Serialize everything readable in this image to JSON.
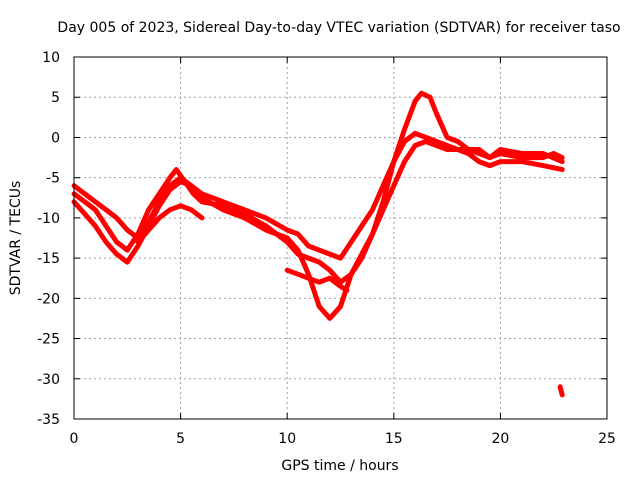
{
  "chart_data": {
    "type": "line",
    "title": "Day 005 of 2023, Sidereal Day-to-day VTEC variation (SDTVAR) for receiver taso",
    "xlabel": "GPS time / hours",
    "ylabel": "SDTVAR / TECUs",
    "xlim": [
      0,
      25
    ],
    "ylim": [
      -35,
      10
    ],
    "xticks": [
      0,
      5,
      10,
      15,
      20,
      25
    ],
    "yticks": [
      10,
      5,
      0,
      -5,
      -10,
      -15,
      -20,
      -25,
      -30,
      -35
    ],
    "x_tick_labels": [
      "0",
      "5",
      "10",
      "15",
      "20",
      "25"
    ],
    "y_tick_labels": [
      "10",
      "5",
      "0",
      "-5",
      "-10",
      "-15",
      "-20",
      "-25",
      "-30",
      "-35"
    ],
    "grid": true,
    "legend": "none",
    "color": "#ff0000",
    "series": [
      {
        "name": "track-1",
        "x": [
          0.0,
          0.5,
          1.0,
          1.5,
          2.0,
          2.5,
          3.0,
          3.5,
          4.0,
          4.5,
          4.8,
          5.2,
          5.6,
          6.0,
          7.0,
          8.0,
          9.0,
          9.5,
          10.0,
          10.5,
          11.0,
          11.5,
          12.0,
          12.5,
          13.0,
          13.5,
          14.0,
          14.5,
          15.0,
          15.5,
          16.0,
          16.3,
          16.7,
          17.0,
          17.5,
          18.0,
          18.5,
          19.0,
          19.5,
          20.0,
          21.0,
          22.0,
          22.5,
          22.9
        ],
        "y": [
          -7,
          -8,
          -9,
          -11,
          -13,
          -14,
          -12,
          -9,
          -7,
          -5,
          -4,
          -5.5,
          -7,
          -8,
          -8.5,
          -9.5,
          -11,
          -12,
          -13,
          -14.5,
          -15,
          -15.5,
          -16.5,
          -18,
          -17,
          -15,
          -12,
          -8,
          -3,
          1,
          4.5,
          5.5,
          5,
          3,
          0,
          -0.5,
          -1.5,
          -2,
          -2.5,
          -2,
          -2.5,
          -2.5,
          -2,
          -2.5
        ]
      },
      {
        "name": "track-2",
        "x": [
          0.0,
          0.5,
          1.0,
          1.5,
          2.0,
          2.5,
          3.0,
          3.5,
          4.0,
          4.5,
          5.0,
          5.5,
          6.0,
          7.0,
          8.0,
          9.0,
          10.0,
          10.5,
          11.0,
          11.5,
          12.0,
          12.5,
          13.0,
          13.5,
          14.0,
          14.5,
          15.0,
          15.5,
          16.0,
          16.5,
          17.0,
          17.5,
          18.0,
          18.5,
          19.0,
          19.5,
          20.0,
          21.0,
          22.0,
          22.9
        ],
        "y": [
          -8,
          -9.5,
          -11,
          -13,
          -14.5,
          -15.5,
          -13.5,
          -11,
          -8.5,
          -6.5,
          -5.5,
          -6,
          -7.5,
          -9,
          -10,
          -11.5,
          -12.5,
          -14,
          -17,
          -21,
          -22.5,
          -21,
          -17,
          -14.5,
          -12,
          -9,
          -6,
          -3,
          -1,
          -0.5,
          -1,
          -1.5,
          -1.5,
          -2,
          -3,
          -3.5,
          -3,
          -3,
          -3.5,
          -4
        ]
      },
      {
        "name": "track-3",
        "x": [
          0.0,
          0.5,
          1.0,
          1.5,
          2.0,
          2.5,
          3.0,
          3.5,
          4.0,
          4.5,
          5.0,
          5.5,
          6.0,
          6.5,
          7.0,
          8.0,
          9.0,
          10.0,
          10.5,
          11.0,
          11.5,
          12.0,
          12.5,
          13.0,
          13.5,
          14.0,
          14.5,
          15.0,
          15.5,
          16.0,
          16.5,
          17.0,
          17.5,
          18.0,
          18.5,
          19.0,
          19.5,
          20.0,
          21.0,
          22.0,
          22.9
        ],
        "y": [
          -6,
          -7,
          -8,
          -9,
          -10,
          -11.5,
          -12.5,
          -10.5,
          -8,
          -6,
          -5,
          -6,
          -7,
          -7.5,
          -8,
          -9,
          -10,
          -11.5,
          -12,
          -13.5,
          -14,
          -14.5,
          -15,
          -13,
          -11,
          -9,
          -6,
          -3,
          -0.5,
          0.5,
          0,
          -0.5,
          -1,
          -1.5,
          -1.5,
          -1.5,
          -2.5,
          -1.5,
          -2,
          -2,
          -3
        ]
      },
      {
        "name": "track-4",
        "x": [
          10.0,
          10.5,
          11.0,
          11.5,
          12.0,
          12.5,
          12.8
        ],
        "y": [
          -16.5,
          -17,
          -17.5,
          -18,
          -17.5,
          -18.5,
          -19
        ]
      },
      {
        "name": "track-5",
        "x": [
          3.0,
          3.5,
          4.0,
          4.5,
          5.0,
          5.5,
          6.0
        ],
        "y": [
          -13,
          -11.5,
          -10,
          -9,
          -8.5,
          -9,
          -10
        ]
      },
      {
        "name": "track-6",
        "x": [
          22.8,
          22.9
        ],
        "y": [
          -31,
          -32
        ]
      }
    ]
  }
}
